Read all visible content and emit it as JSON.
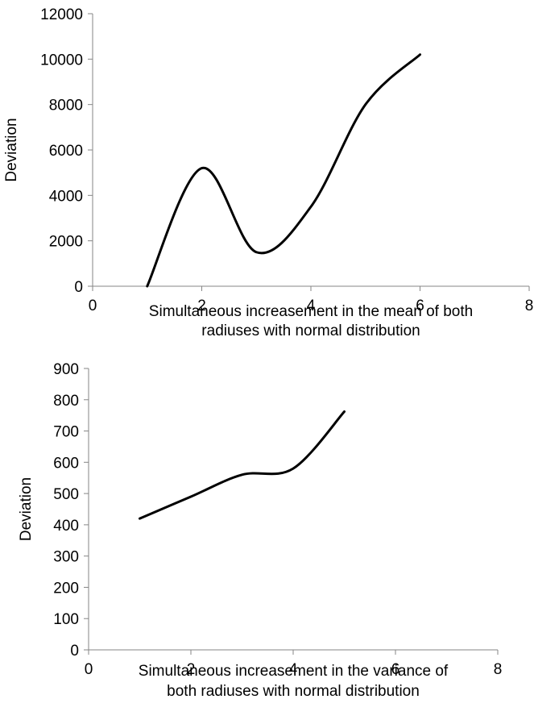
{
  "chart_data": [
    {
      "type": "line",
      "title": "",
      "xlabel": [
        "Simultaneous increasement in the mean of both",
        "radiuses with normal distribution"
      ],
      "ylabel": "Deviation",
      "xlim": [
        0,
        8
      ],
      "ylim": [
        0,
        12000
      ],
      "xticks": [
        0,
        2,
        4,
        6,
        8
      ],
      "yticks": [
        0,
        2000,
        4000,
        6000,
        8000,
        10000,
        12000
      ],
      "grid": false,
      "series": [
        {
          "color": "#000000",
          "smooth": true,
          "x": [
            1,
            2,
            3,
            4,
            5,
            6
          ],
          "y": [
            0,
            5200,
            1500,
            3500,
            8000,
            10200
          ]
        }
      ]
    },
    {
      "type": "line",
      "title": "",
      "xlabel": [
        "Simultaneous increasement in the variance of",
        "both radiuses with normal distribution"
      ],
      "ylabel": "Deviation",
      "xlim": [
        0,
        8
      ],
      "ylim": [
        0,
        900
      ],
      "xticks": [
        0,
        2,
        4,
        6,
        8
      ],
      "yticks": [
        0,
        100,
        200,
        300,
        400,
        500,
        600,
        700,
        800,
        900
      ],
      "grid": false,
      "series": [
        {
          "color": "#000000",
          "smooth": true,
          "x": [
            1,
            2,
            3,
            4,
            5
          ],
          "y": [
            420,
            490,
            560,
            580,
            762
          ]
        }
      ]
    }
  ]
}
